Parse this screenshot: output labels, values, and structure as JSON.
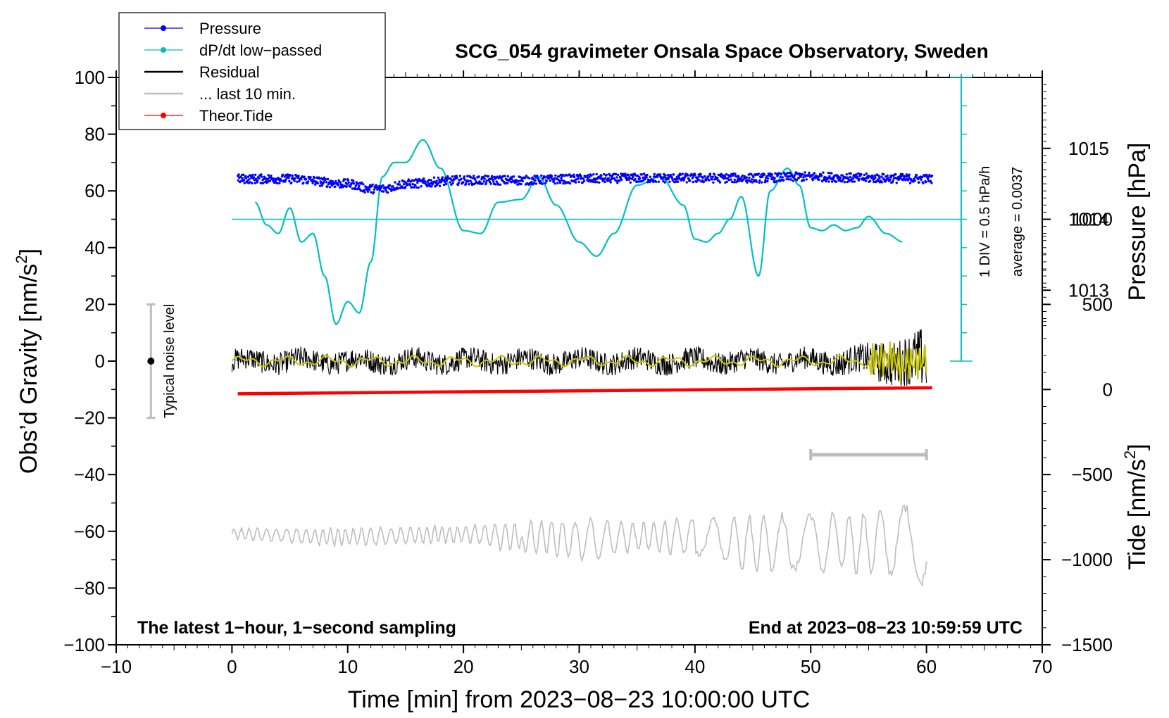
{
  "chart_data": {
    "type": "line",
    "title": "SCG_054 gravimeter Onsala Space Observatory, Sweden",
    "xlabel": "Time [min] from 2023−08−23 10:00:00 UTC",
    "ylabel_left": "Obs’d Gravity [nm/s",
    "ylabel_left_sup": "2",
    "ylabel_left_close": "]",
    "ylabel_right_pressure": "Pressure [hPa]",
    "ylabel_right_tide": "Tide [nm/s",
    "ylabel_right_tide_sup": "2",
    "ylabel_right_tide_close": "]",
    "xlim": [
      -10,
      70
    ],
    "ylim": [
      -100,
      100
    ],
    "xticks": [
      -10,
      0,
      10,
      20,
      30,
      40,
      50,
      60,
      70
    ],
    "xtick_labels": [
      "−10",
      "0",
      "10",
      "20",
      "30",
      "40",
      "50",
      "60",
      "70"
    ],
    "yticks": [
      -100,
      -80,
      -60,
      -40,
      -20,
      0,
      20,
      40,
      60,
      80,
      100
    ],
    "ytick_labels": [
      "−100",
      "−80",
      "−60",
      "−40",
      "−20",
      "0",
      "20",
      "40",
      "60",
      "80",
      "100"
    ],
    "pressure_axis": {
      "ticks": [
        1013,
        1014,
        1015
      ],
      "tick_labels": [
        "1013",
        "1014",
        "1015"
      ],
      "anchor": {
        "value": 1014,
        "gravity_equiv": 50
      },
      "gravity_per_hPa": 25
    },
    "tide_axis": {
      "ticks": [
        -1500,
        -1000,
        -500,
        0,
        500,
        1000
      ],
      "tick_labels": [
        "−1500",
        "−1000",
        "−500",
        "0",
        "500",
        "1000"
      ],
      "gravity_per_unit": 0.06,
      "offset": -10
    },
    "legend": {
      "position": "top-left",
      "entries": [
        {
          "label": "Pressure",
          "color": "#0000ff",
          "style": "line-dot"
        },
        {
          "label": "dP/dt low−passed",
          "color": "#00c0c0",
          "style": "line-dot"
        },
        {
          "label": "Residual",
          "color": "#000000",
          "style": "line"
        },
        {
          "label": "... last 10 min.",
          "color": "#bdbdbd",
          "style": "line"
        },
        {
          "label": "Theor.Tide",
          "color": "#ff0000",
          "style": "line-dot"
        }
      ]
    },
    "series": [
      {
        "name": "Pressure",
        "color": "#0000ff",
        "unit": "hPa",
        "x": [
          0,
          5,
          10,
          12,
          13,
          15,
          20,
          25,
          30,
          35,
          40,
          45,
          50,
          55,
          60.5
        ],
        "y": [
          1014.57,
          1014.57,
          1014.5,
          1014.43,
          1014.43,
          1014.5,
          1014.55,
          1014.55,
          1014.57,
          1014.58,
          1014.58,
          1014.58,
          1014.6,
          1014.58,
          1014.57
        ]
      },
      {
        "name": "dP/dt low−passed",
        "color": "#00c0c0",
        "reference_line": 50,
        "x": [
          2,
          3,
          4,
          5,
          6,
          7,
          8,
          9,
          10,
          11,
          12,
          13,
          14,
          15,
          16.5,
          18,
          20,
          21.5,
          23,
          25,
          26.5,
          28,
          30,
          31.5,
          33,
          35,
          37,
          39,
          40,
          41,
          42,
          43,
          44,
          45.5,
          46.5,
          48,
          49,
          50,
          51,
          52,
          53,
          54,
          55,
          56.5,
          58
        ],
        "y": [
          56,
          48,
          45,
          54,
          42,
          45,
          30,
          13,
          21,
          17,
          35,
          65,
          70,
          70,
          78,
          68,
          46,
          45,
          56,
          57,
          65,
          55,
          42,
          37,
          45,
          62,
          65,
          55,
          43,
          42,
          45,
          50,
          58,
          30,
          60,
          68,
          62,
          47,
          46,
          48,
          46,
          47,
          51,
          45,
          42
        ]
      },
      {
        "name": "Residual",
        "color": "#000000",
        "x": [
          0,
          10,
          20,
          30,
          40,
          50,
          54,
          57,
          60
        ],
        "y": [
          0,
          0,
          0,
          0,
          0,
          0,
          0,
          0,
          0
        ],
        "amplitude": [
          4,
          4,
          4,
          4,
          4,
          4,
          5,
          8,
          11
        ]
      },
      {
        "name": "Residual low−passed",
        "color": "#c8c800",
        "x": [
          0,
          10,
          20,
          30,
          40,
          50,
          60
        ],
        "y": [
          0,
          0,
          0,
          0,
          0,
          0,
          0
        ]
      },
      {
        "name": "... last 10 min.",
        "color": "#bdbdbd",
        "x": [
          0,
          10,
          20,
          25,
          30,
          35,
          40,
          45,
          50,
          55,
          58,
          60
        ],
        "y": [
          -61,
          -62,
          -61,
          -62,
          -63,
          -62,
          -62,
          -64,
          -64,
          -64,
          -63,
          -71
        ],
        "amplitude": [
          2,
          3,
          3,
          5,
          7,
          5,
          6,
          9,
          10,
          10,
          12,
          8
        ]
      },
      {
        "name": "Theor.Tide",
        "color": "#ff0000",
        "unit": "nm/s²",
        "x": [
          0.5,
          60.5
        ],
        "y": [
          -25,
          10
        ]
      }
    ],
    "scale_bar": {
      "label1": "1 DIV = 0.5 hPa/h",
      "label2": "average = 0.0037",
      "x": 63,
      "y_top": 100,
      "y_bottom": 0
    },
    "noise_bar": {
      "label": "Typical noise level",
      "x": -7,
      "y_low": -20,
      "y_high": 20,
      "y_center": 0
    },
    "window_bar": {
      "x_start": 50,
      "x_end": 60,
      "y": -33
    }
  },
  "notes": {
    "left": "The latest 1−hour, 1−second sampling",
    "right": "End at 2023−08−23 10:59:59 UTC"
  }
}
